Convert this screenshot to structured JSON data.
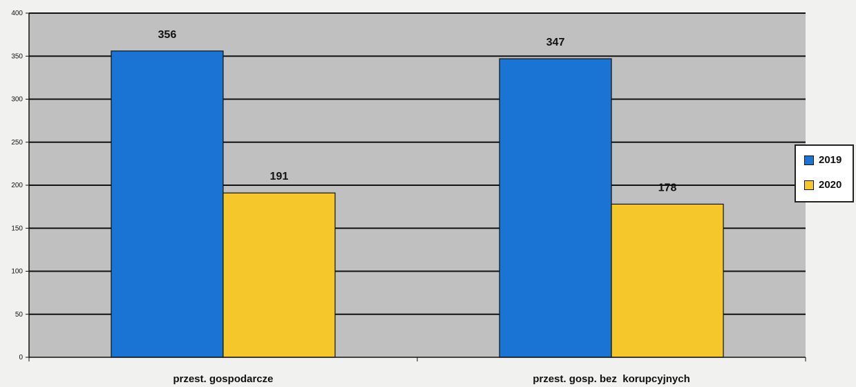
{
  "chart_data": {
    "type": "bar",
    "categories": [
      "przest. gospodarcze",
      "przest. gosp. bez  korupcyjnych"
    ],
    "series": [
      {
        "name": "2019",
        "values": [
          356,
          347
        ],
        "color": "#1a74d4"
      },
      {
        "name": "2020",
        "values": [
          191,
          178
        ],
        "color": "#f5c72a"
      }
    ],
    "yticks": [
      0,
      50,
      100,
      150,
      200,
      250,
      300,
      350,
      400
    ],
    "ylim": [
      0,
      400
    ],
    "grid": true,
    "legend": "right",
    "plot_background": "#c0c0c0"
  }
}
